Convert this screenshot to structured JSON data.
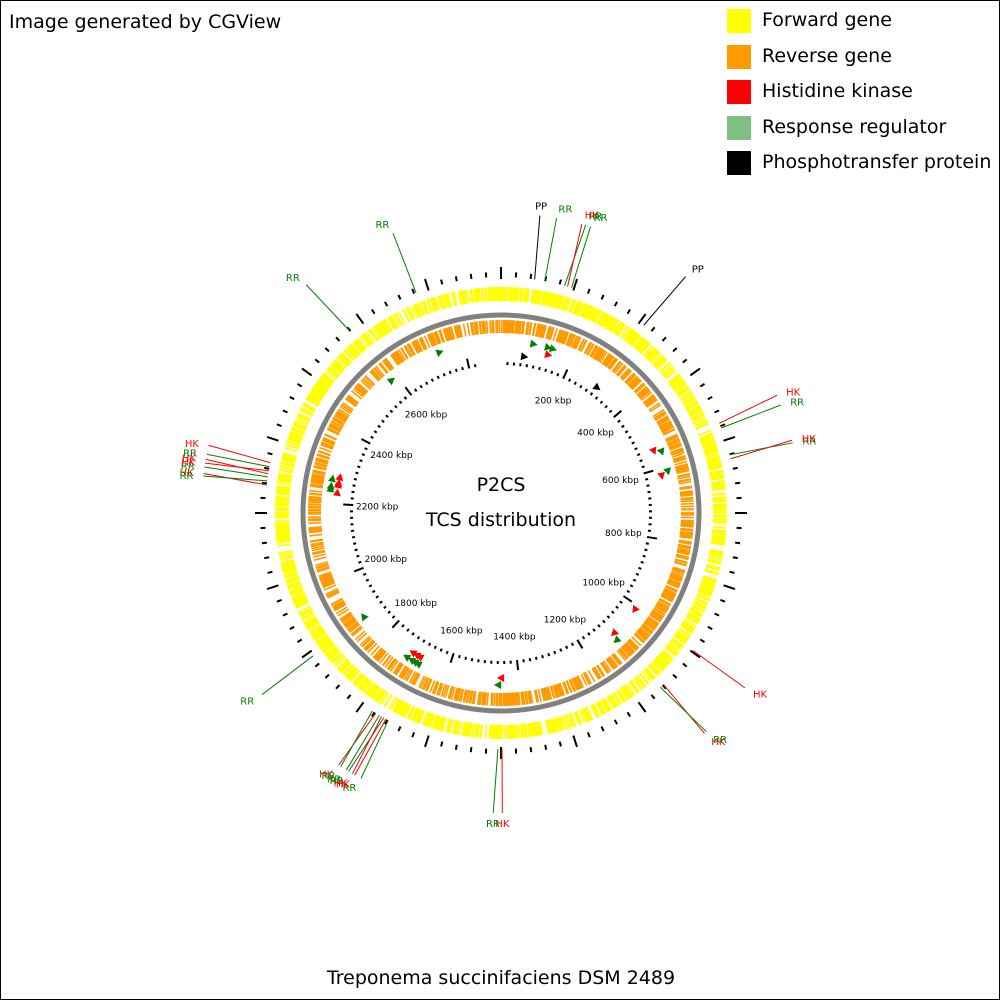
{
  "generator_note": "Image generated by CGView",
  "organism": "Treponema succinifaciens DSM 2489",
  "center": {
    "line1": "P2CS",
    "line2": "TCS distribution"
  },
  "legend": [
    {
      "label": "Forward gene",
      "color": "#ffff00"
    },
    {
      "label": "Reverse gene",
      "color": "#ff9a00"
    },
    {
      "label": "Histidine kinase",
      "color": "#ff0000"
    },
    {
      "label": "Response regulator",
      "color": "#7fbf7f"
    },
    {
      "label": "Phosphotransfer protein",
      "color": "#000000"
    }
  ],
  "genome": {
    "length_kbp": 2900,
    "backbone_color": "#808080",
    "forward_color": "#ffff00",
    "reverse_color": "#ff9a00",
    "hk_color": "#ff0000",
    "rr_color": "#008000",
    "pp_color": "#000000"
  },
  "tick_labels": [
    {
      "kbp": 200,
      "text": "200 kbp"
    },
    {
      "kbp": 400,
      "text": "400 kbp"
    },
    {
      "kbp": 600,
      "text": "600 kbp"
    },
    {
      "kbp": 800,
      "text": "800 kbp"
    },
    {
      "kbp": 1000,
      "text": "1000 kbp"
    },
    {
      "kbp": 1200,
      "text": "1200 kbp"
    },
    {
      "kbp": 1400,
      "text": "1400 kbp"
    },
    {
      "kbp": 1600,
      "text": "1600 kbp"
    },
    {
      "kbp": 1800,
      "text": "1800 kbp"
    },
    {
      "kbp": 2000,
      "text": "2000 kbp"
    },
    {
      "kbp": 2200,
      "text": "2200 kbp"
    },
    {
      "kbp": 2400,
      "text": "2400 kbp"
    },
    {
      "kbp": 2600,
      "text": "2600 kbp"
    }
  ],
  "features": [
    {
      "kbp": 66,
      "type": "PP",
      "label": "PP"
    },
    {
      "kbp": 86,
      "type": "RR",
      "label": "RR"
    },
    {
      "kbp": 126,
      "type": "RR",
      "label": "RR"
    },
    {
      "kbp": 132,
      "type": "HK",
      "label": "HK"
    },
    {
      "kbp": 140,
      "type": "RR",
      "label": "RR"
    },
    {
      "kbp": 300,
      "type": "PP",
      "label": "PP"
    },
    {
      "kbp": 545,
      "type": "HK",
      "label": "HK"
    },
    {
      "kbp": 555,
      "type": "RR",
      "label": "RR"
    },
    {
      "kbp": 610,
      "type": "RR",
      "label": "RR"
    },
    {
      "kbp": 618,
      "type": "HK",
      "label": "HK"
    },
    {
      "kbp": 1012,
      "type": "HK",
      "label": "HK"
    },
    {
      "kbp": 1100,
      "type": "HK",
      "label": "HK"
    },
    {
      "kbp": 1108,
      "type": "RR",
      "label": "RR"
    },
    {
      "kbp": 1448,
      "type": "HK",
      "label": "HK"
    },
    {
      "kbp": 1456,
      "type": "RR",
      "label": "RR"
    },
    {
      "kbp": 1680,
      "type": "RR",
      "label": "RR"
    },
    {
      "kbp": 1685,
      "type": "HK",
      "label": "HK"
    },
    {
      "kbp": 1690,
      "type": "RR",
      "label": "RR"
    },
    {
      "kbp": 1695,
      "type": "HK",
      "label": "HK"
    },
    {
      "kbp": 1700,
      "type": "RR",
      "label": "RR"
    },
    {
      "kbp": 1708,
      "type": "HK",
      "label": "HK"
    },
    {
      "kbp": 1716,
      "type": "RR",
      "label": "RR"
    },
    {
      "kbp": 1875,
      "type": "RR",
      "label": "RR"
    },
    {
      "kbp": 2230,
      "type": "HK",
      "label": "HK"
    },
    {
      "kbp": 2238,
      "type": "RR",
      "label": "RR"
    },
    {
      "kbp": 2246,
      "type": "RR",
      "label": "RR"
    },
    {
      "kbp": 2252,
      "type": "HK",
      "label": "HK"
    },
    {
      "kbp": 2258,
      "type": "HK",
      "label": "HK"
    },
    {
      "kbp": 2266,
      "type": "RR",
      "label": "RR"
    },
    {
      "kbp": 2274,
      "type": "HK",
      "label": "HK"
    },
    {
      "kbp": 2580,
      "type": "RR",
      "label": "RR"
    },
    {
      "kbp": 2730,
      "type": "RR",
      "label": "RR"
    }
  ]
}
